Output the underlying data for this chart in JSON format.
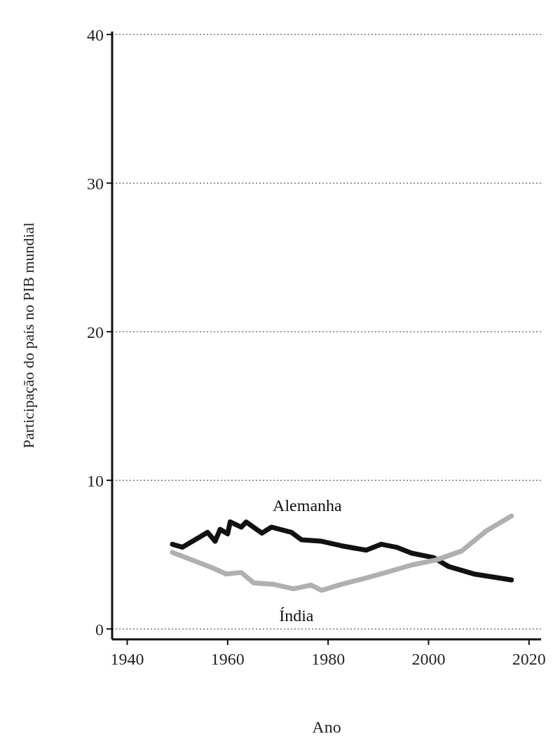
{
  "chart_data": {
    "type": "line",
    "xlabel": "Ano",
    "ylabel": "Participação do país no PIB mundial",
    "xlim": [
      1937,
      2022.4
    ],
    "xticks": [
      1940,
      1960,
      1980,
      2000,
      2020
    ],
    "ylim": [
      -0.7,
      40.2
    ],
    "yticks": [
      0,
      10,
      20,
      30,
      40
    ],
    "grid": "y",
    "marker": "none",
    "line_style": "solid",
    "series": [
      {
        "name": "Alemanha",
        "color": "#111111",
        "x": [
          1949,
          1951,
          1956,
          1957.5,
          1958.5,
          1960,
          1960.5,
          1962.7,
          1963.7,
          1966.8,
          1968.7,
          1972.7,
          1974.7,
          1978.7,
          1982.6,
          1987.6,
          1990.6,
          1993.6,
          1996.6,
          2001,
          2004,
          2009,
          2016.5
        ],
        "values": [
          5.7,
          5.5,
          6.5,
          5.9,
          6.7,
          6.4,
          7.2,
          6.85,
          7.2,
          6.45,
          6.85,
          6.5,
          6.0,
          5.9,
          5.6,
          5.3,
          5.7,
          5.5,
          5.1,
          4.8,
          4.2,
          3.7,
          3.3
        ]
      },
      {
        "name": "Índia",
        "color": "#b0b0b0",
        "x": [
          1949,
          1952.8,
          1956.7,
          1959.7,
          1962.7,
          1965.2,
          1969.2,
          1973.1,
          1976.6,
          1978.7,
          1982.6,
          1986.7,
          1991.5,
          1996.6,
          2001.6,
          2006.6,
          2011.5,
          2016.5
        ],
        "values": [
          5.15,
          4.65,
          4.15,
          3.7,
          3.8,
          3.1,
          3.0,
          2.7,
          2.95,
          2.6,
          3.0,
          3.35,
          3.8,
          4.3,
          4.65,
          5.25,
          6.6,
          7.6
        ]
      }
    ]
  }
}
